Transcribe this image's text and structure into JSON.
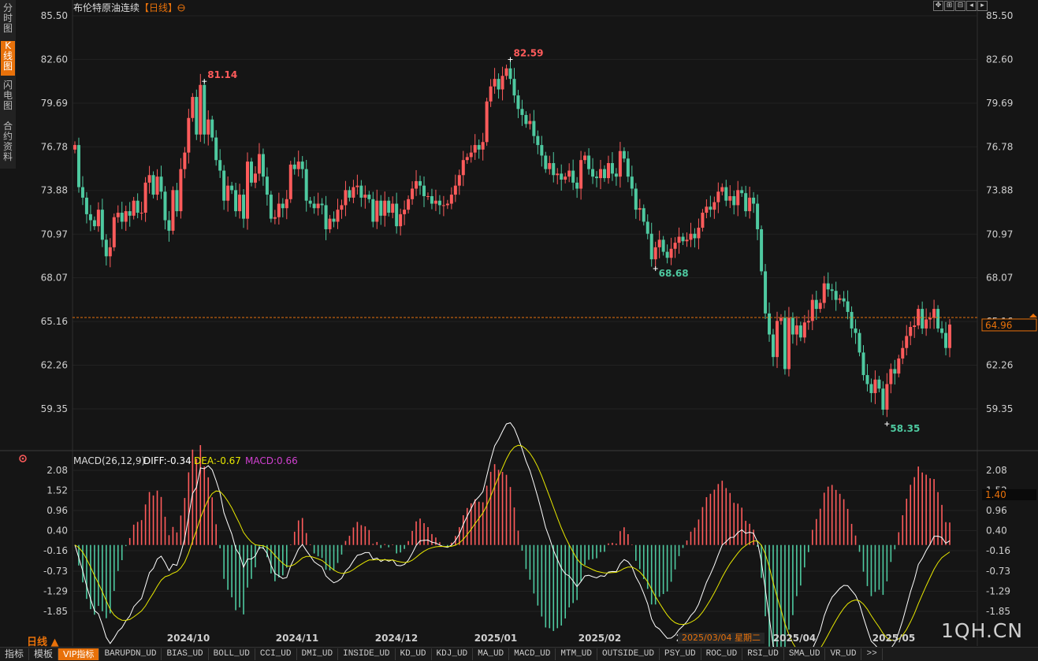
{
  "sidebar_tabs": [
    "分\n时\n图",
    "K\n线\n图",
    "闪\n电\n图",
    "合\n约\n资\n料"
  ],
  "chart_header": {
    "title": "布伦特原油连续",
    "period_tag": "【日线】"
  },
  "macd_header": {
    "label": "MACD(26,12,9)",
    "diff": "DIFF:-0.34",
    "dea": "DEA:-0.67",
    "macd": "MACD:0.66"
  },
  "period_label": "日线 ▲",
  "crosshair_date": "2025/03/04 星期二",
  "watermark": "1QH.CN",
  "bottom_bar": [
    "指标",
    "模板",
    "VIP指标",
    "BARUPDN_UD",
    "BIAS_UD",
    "BOLL_UD",
    "CCI_UD",
    "DMI_UD",
    "INSIDE_UD",
    "KD_UD",
    "KDJ_UD",
    "MA_UD",
    "MACD_UD",
    "MTM_UD",
    "OUTSIDE_UD",
    "PSY_UD",
    "ROC_UD",
    "RSI_UD",
    "SMA_UD",
    "VR_UD",
    ">>"
  ],
  "corner_icons": [
    "expand-icon",
    "fit-icon",
    "restore-icon",
    "prev-icon",
    "next-icon"
  ],
  "colors": {
    "up": "#ff5b5b",
    "down": "#4ec9a0",
    "diff": "#ffffff",
    "dea": "#e8e800",
    "macd_text": "#d040d0",
    "last_price": "#e8710a"
  },
  "chart_data": [
    {
      "type": "candlestick",
      "title": "布伦特原油连续",
      "ylim": [
        58.35,
        85.5
      ],
      "y_ticks": [
        "85.50",
        "82.60",
        "79.69",
        "76.78",
        "73.88",
        "70.97",
        "68.07",
        "65.16",
        "62.26",
        "59.35"
      ],
      "x_ticks": [
        "2024/10",
        "2024/11",
        "2024/12",
        "2025/01",
        "2025/02",
        "2025/03",
        "2025/04",
        "2025/05"
      ],
      "annotations": [
        {
          "label": "81.14",
          "value": 81.14
        },
        {
          "label": "68.68",
          "value": 68.68
        },
        {
          "label": "82.59",
          "value": 82.59
        },
        {
          "label": "58.35",
          "value": 58.35
        }
      ],
      "last_price": {
        "label": "64.96",
        "value": 64.96
      },
      "closes": [
        76.9,
        74.1,
        73.4,
        72.3,
        71.9,
        71.5,
        72.6,
        70.6,
        69.5,
        70.1,
        72.1,
        72.4,
        71.8,
        72.5,
        72.2,
        73.2,
        72.4,
        72.4,
        74.4,
        74.9,
        73.6,
        74.8,
        73.8,
        71.9,
        71.2,
        73.9,
        72.5,
        75.3,
        76.4,
        78.7,
        80.1,
        77.6,
        80.9,
        77.6,
        78.6,
        77.4,
        75.9,
        75.2,
        73.2,
        74.2,
        73.9,
        72.5,
        73.6,
        72.0,
        75.8,
        74.4,
        75.0,
        76.3,
        74.8,
        73.6,
        72.0,
        72.1,
        73.0,
        72.7,
        73.3,
        75.6,
        75.3,
        75.8,
        75.3,
        73.2,
        73.0,
        72.7,
        73.0,
        72.9,
        71.3,
        72.0,
        71.8,
        72.6,
        72.9,
        73.9,
        73.4,
        74.1,
        74.2,
        73.4,
        73.6,
        73.3,
        71.8,
        73.2,
        72.2,
        73.2,
        72.4,
        73.0,
        71.5,
        72.3,
        72.6,
        73.3,
        74.0,
        74.5,
        74.2,
        73.5,
        73.5,
        73.0,
        73.2,
        72.9,
        72.9,
        73.0,
        73.6,
        74.2,
        74.9,
        75.9,
        76.1,
        76.4,
        76.9,
        76.6,
        77.1,
        79.8,
        80.8,
        81.3,
        80.6,
        81.5,
        82.0,
        81.3,
        80.2,
        79.3,
        78.9,
        78.3,
        78.5,
        77.5,
        76.9,
        76.2,
        75.3,
        75.7,
        74.9,
        75.0,
        74.6,
        74.8,
        75.2,
        74.4,
        74.0,
        75.9,
        76.2,
        75.3,
        74.8,
        74.7,
        75.3,
        74.7,
        75.7,
        75.0,
        74.8,
        76.5,
        76.0,
        74.8,
        74.0,
        72.6,
        72.7,
        71.8,
        71.0,
        69.3,
        70.1,
        70.6,
        69.8,
        69.4,
        70.0,
        70.4,
        70.8,
        70.5,
        70.6,
        71.0,
        70.7,
        71.4,
        72.4,
        72.8,
        72.6,
        73.1,
        73.8,
        74.1,
        73.2,
        73.5,
        72.9,
        73.9,
        73.7,
        72.5,
        73.4,
        73.0,
        71.3,
        68.5,
        65.7,
        64.3,
        62.8,
        65.2,
        65.4,
        62.0,
        65.4,
        64.3,
        64.9,
        64.1,
        65.1,
        65.2,
        66.6,
        66.0,
        66.4,
        67.7,
        67.3,
        67.2,
        66.6,
        66.7,
        66.5,
        65.8,
        64.7,
        64.4,
        63.1,
        61.6,
        61.0,
        60.4,
        61.3,
        60.7,
        59.3,
        61.0,
        62.0,
        61.7,
        62.7,
        63.4,
        64.2,
        64.8,
        64.9,
        66.0,
        64.7,
        65.3,
        65.4,
        66.0,
        64.7,
        64.4,
        63.4,
        64.96
      ]
    },
    {
      "type": "macd",
      "title": "MACD(26,12,9)",
      "ylim": [
        -2.3,
        2.4
      ],
      "y_ticks": [
        "2.08",
        "1.52",
        "0.96",
        "0.40",
        "-0.16",
        "-0.73",
        "-1.29",
        "-1.85"
      ],
      "current_value_label": "1.40",
      "series": [
        {
          "name": "DIFF",
          "last": -0.34
        },
        {
          "name": "DEA",
          "last": -0.67
        },
        {
          "name": "MACD",
          "last": 0.66
        }
      ]
    }
  ]
}
